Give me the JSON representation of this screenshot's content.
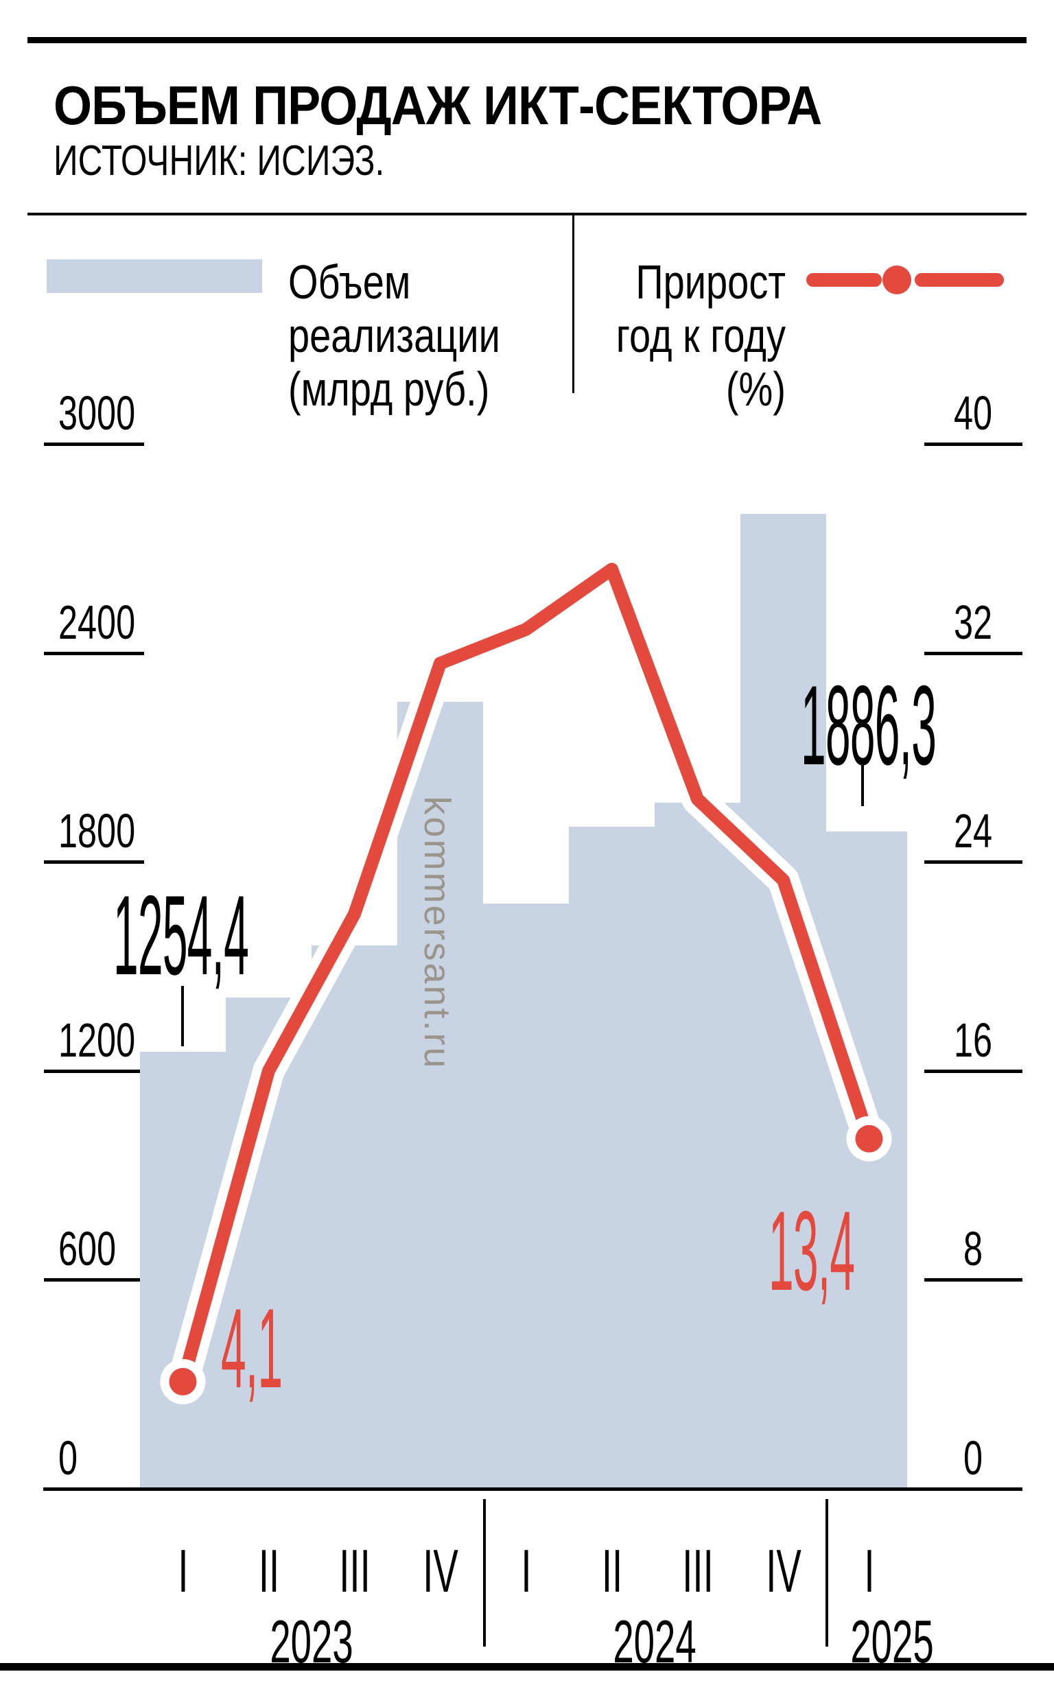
{
  "header": {
    "title": "ОБЪЕМ ПРОДАЖ ИКТ-СЕКТОРА",
    "source": "ИСТОЧНИК: ИСИЭЗ."
  },
  "legend": {
    "volume_label_lines": [
      "Объем",
      "реализации",
      "(млрд руб.)"
    ],
    "growth_label_lines": [
      "Прирост",
      "год к году",
      "(%)"
    ]
  },
  "watermark": "kommersant.ru",
  "colors": {
    "bar": "#c8d4e3",
    "line": "#e4493e",
    "watermark": "#9b948b",
    "text": "#000000"
  },
  "chart_data": {
    "type": "bar+line",
    "quarters": [
      "I",
      "II",
      "III",
      "IV",
      "I",
      "II",
      "III",
      "IV",
      "I"
    ],
    "years": [
      "2023",
      "2024",
      "2025"
    ],
    "series": [
      {
        "name": "Объем реализации (млрд руб.)",
        "type": "bar",
        "values": [
          1254.4,
          1410,
          1560,
          2260,
          1680,
          1900,
          1970,
          2800,
          1886.3
        ]
      },
      {
        "name": "Прирост год к году (%)",
        "type": "line",
        "values": [
          4.1,
          16.0,
          22.0,
          31.6,
          32.9,
          35.2,
          26.4,
          23.3,
          13.4
        ]
      }
    ],
    "left_axis": {
      "ticks": [
        3000,
        2400,
        1800,
        1200,
        600,
        0
      ],
      "range": [
        0,
        3000
      ]
    },
    "right_axis": {
      "ticks": [
        40,
        32,
        24,
        16,
        8,
        0
      ],
      "range": [
        0,
        40
      ]
    },
    "annotations": {
      "first_bar": "1254,4",
      "last_bar": "1886,3",
      "first_point": "4,1",
      "last_point": "13,4"
    },
    "grid": "ticks-only",
    "legend_position": "top"
  }
}
